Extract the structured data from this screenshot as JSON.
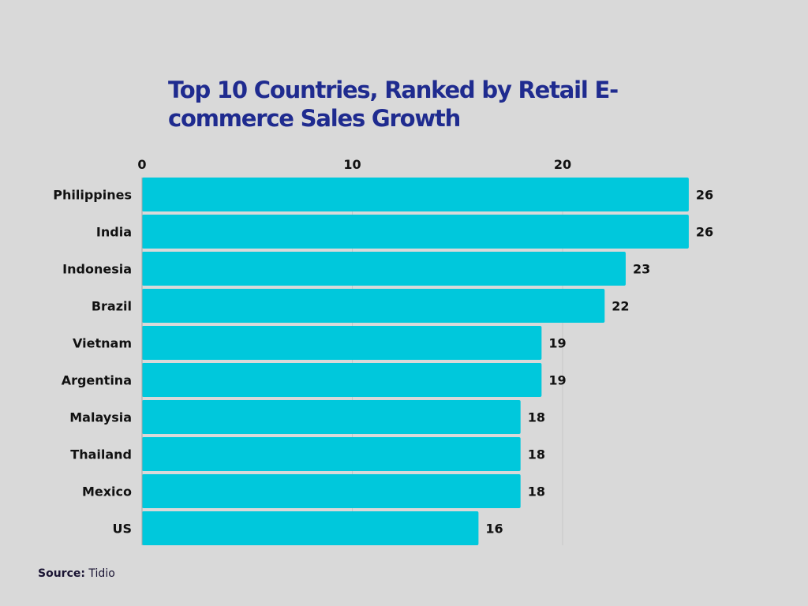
{
  "chart_data": {
    "type": "bar",
    "orientation": "horizontal",
    "title": "Top 10 Countries, Ranked by Retail E-commerce Sales Growth",
    "categories": [
      "Philippines",
      "India",
      "Indonesia",
      "Brazil",
      "Vietnam",
      "Argentina",
      "Malaysia",
      "Thailand",
      "Mexico",
      "US"
    ],
    "values": [
      26,
      26,
      23,
      22,
      19,
      19,
      18,
      18,
      18,
      16
    ],
    "xticks": [
      0,
      10,
      20
    ],
    "xlim": [
      0,
      30
    ],
    "grid": true,
    "xaxis_position": "top",
    "bar_color": "#00c8dc",
    "title_color": "#1f2b8f"
  },
  "source": {
    "label": "Source:",
    "value": "Tidio"
  }
}
